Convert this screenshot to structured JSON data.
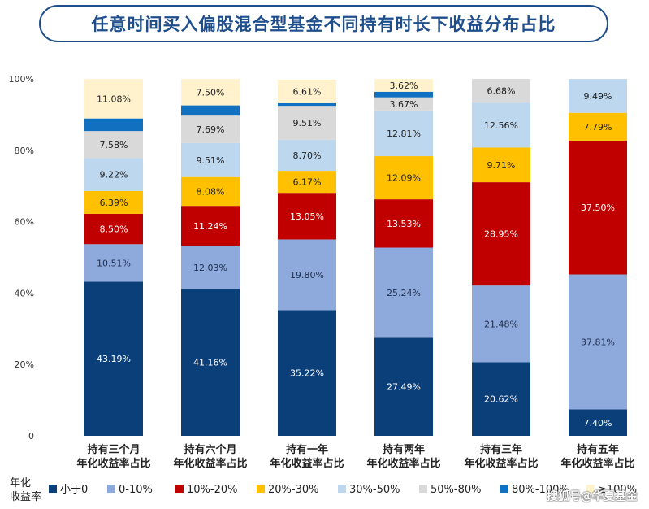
{
  "title": "任意时间买入偏股混合型基金不同持有时长下收益分布占比",
  "watermark": "搜狐号@华夏基金",
  "legend_title": [
    "年化",
    "收益率"
  ],
  "chart_data": {
    "type": "bar",
    "stacked": true,
    "categories": [
      [
        "持有三个月",
        "年化收益率占比"
      ],
      [
        "持有六个月",
        "年化收益率占比"
      ],
      [
        "持有一年",
        "年化收益率占比"
      ],
      [
        "持有两年",
        "年化收益率占比"
      ],
      [
        "持有三年",
        "年化收益率占比"
      ],
      [
        "持有五年",
        "年化收益率占比"
      ]
    ],
    "y_ticks": [
      "0",
      "20%",
      "40%",
      "60%",
      "80%",
      "100%"
    ],
    "ylim": [
      0,
      100
    ],
    "legend_position": "bottom",
    "series": [
      {
        "name": "小于0",
        "color": "#0b3f7a",
        "label_color": "#ffffff",
        "values": [
          43.19,
          41.16,
          35.22,
          27.49,
          20.62,
          7.4
        ]
      },
      {
        "name": "0-10%",
        "color": "#8ea9db",
        "label_color": "#1f2f4f",
        "values": [
          10.51,
          12.03,
          19.8,
          25.24,
          21.48,
          37.81
        ]
      },
      {
        "name": "10%-20%",
        "color": "#c00000",
        "label_color": "#ffffff",
        "values": [
          8.5,
          11.24,
          13.05,
          13.53,
          28.95,
          37.5
        ]
      },
      {
        "name": "20%-30%",
        "color": "#ffc000",
        "label_color": "#222222",
        "values": [
          6.39,
          8.08,
          6.17,
          12.09,
          9.71,
          7.79
        ]
      },
      {
        "name": "30%-50%",
        "color": "#bdd7ee",
        "label_color": "#222222",
        "values": [
          9.22,
          9.51,
          8.7,
          12.81,
          12.56,
          9.49
        ]
      },
      {
        "name": "50%-80%",
        "color": "#d9d9d9",
        "label_color": "#222222",
        "values": [
          7.58,
          7.69,
          9.51,
          3.67,
          6.68,
          0
        ]
      },
      {
        "name": "80%-100%",
        "color": "#1170c0",
        "label_color": "#ffffff",
        "values": [
          3.53,
          2.87,
          0.74,
          1.57,
          0,
          0
        ]
      },
      {
        "name": "≥100%",
        "color": "#fff2cc",
        "label_color": "#222222",
        "values": [
          11.08,
          7.5,
          6.61,
          3.62,
          0,
          0
        ]
      }
    ],
    "data_labels": [
      [
        "43.19%",
        "10.51%",
        "8.50%",
        "6.39%",
        "9.22%",
        "7.58%",
        "",
        "11.08%"
      ],
      [
        "41.16%",
        "12.03%",
        "11.24%",
        "8.08%",
        "9.51%",
        "7.69%",
        "",
        "7.50%"
      ],
      [
        "35.22%",
        "19.80%",
        "13.05%",
        "6.17%",
        "8.70%",
        "9.51%",
        "",
        "6.61%"
      ],
      [
        "27.49%",
        "25.24%",
        "13.53%",
        "12.09%",
        "12.81%",
        "3.67%",
        "",
        "3.62%"
      ],
      [
        "20.62%",
        "21.48%",
        "28.95%",
        "9.71%",
        "12.56%",
        "6.68%",
        "",
        ""
      ],
      [
        "7.40%",
        "37.81%",
        "37.50%",
        "7.79%",
        "9.49%",
        "",
        "",
        ""
      ]
    ]
  }
}
